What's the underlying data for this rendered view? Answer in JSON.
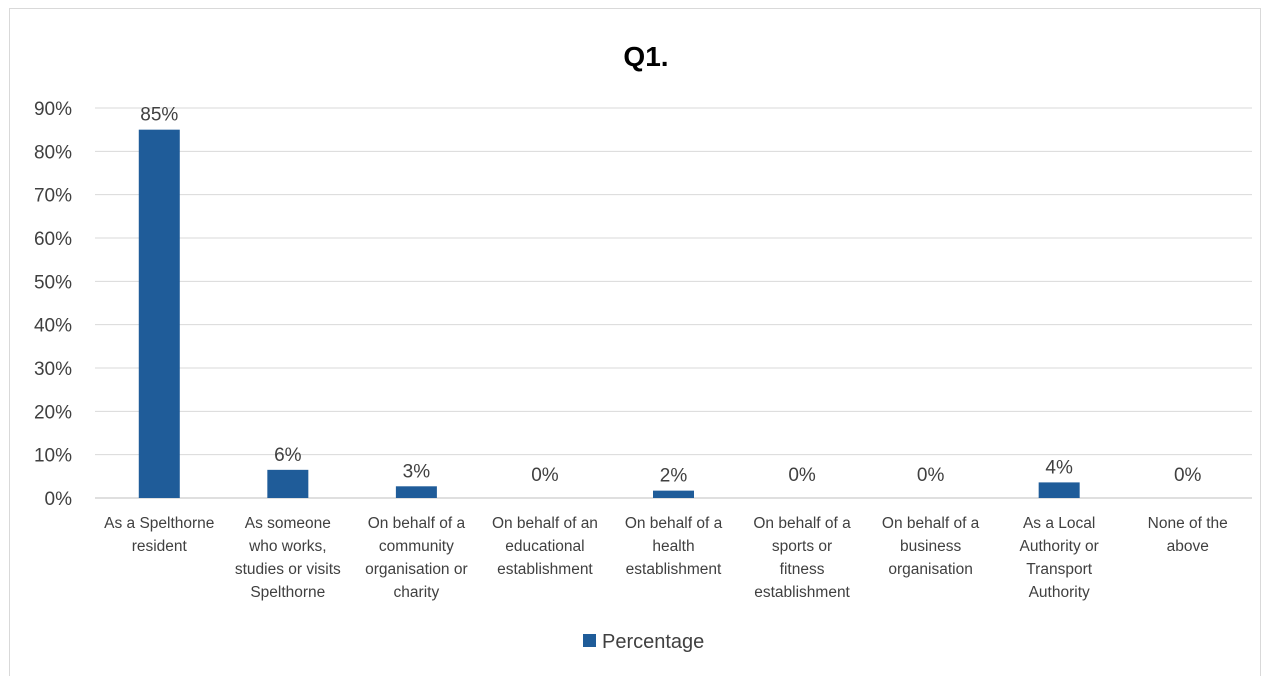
{
  "chart_data": {
    "type": "bar",
    "title": "Q1.",
    "categories": [
      [
        "As a Spelthorne",
        "resident"
      ],
      [
        "As someone",
        "who works,",
        "studies or visits",
        "Spelthorne"
      ],
      [
        "On behalf of a",
        "community",
        "organisation or",
        "charity"
      ],
      [
        "On behalf of an",
        "educational",
        "establishment"
      ],
      [
        "On behalf of a",
        "health",
        "establishment"
      ],
      [
        "On behalf of a",
        "sports or",
        "fitness",
        "establishment"
      ],
      [
        "On behalf of a",
        "business",
        "organisation"
      ],
      [
        "As a Local",
        "Authority or",
        "Transport",
        "Authority"
      ],
      [
        "None of the",
        "above"
      ]
    ],
    "series": [
      {
        "name": "Percentage",
        "values": [
          85,
          6.5,
          2.7,
          0,
          1.7,
          0,
          0,
          3.6,
          0
        ],
        "labels": [
          "85%",
          "6%",
          "3%",
          "0%",
          "2%",
          "0%",
          "0%",
          "4%",
          "0%"
        ]
      }
    ],
    "yticks": [
      "0%",
      "10%",
      "20%",
      "30%",
      "40%",
      "50%",
      "60%",
      "70%",
      "80%",
      "90%"
    ],
    "ylim": [
      0,
      90
    ],
    "grid": true,
    "legend": "bottom",
    "bar_color": "#1f5c99"
  }
}
